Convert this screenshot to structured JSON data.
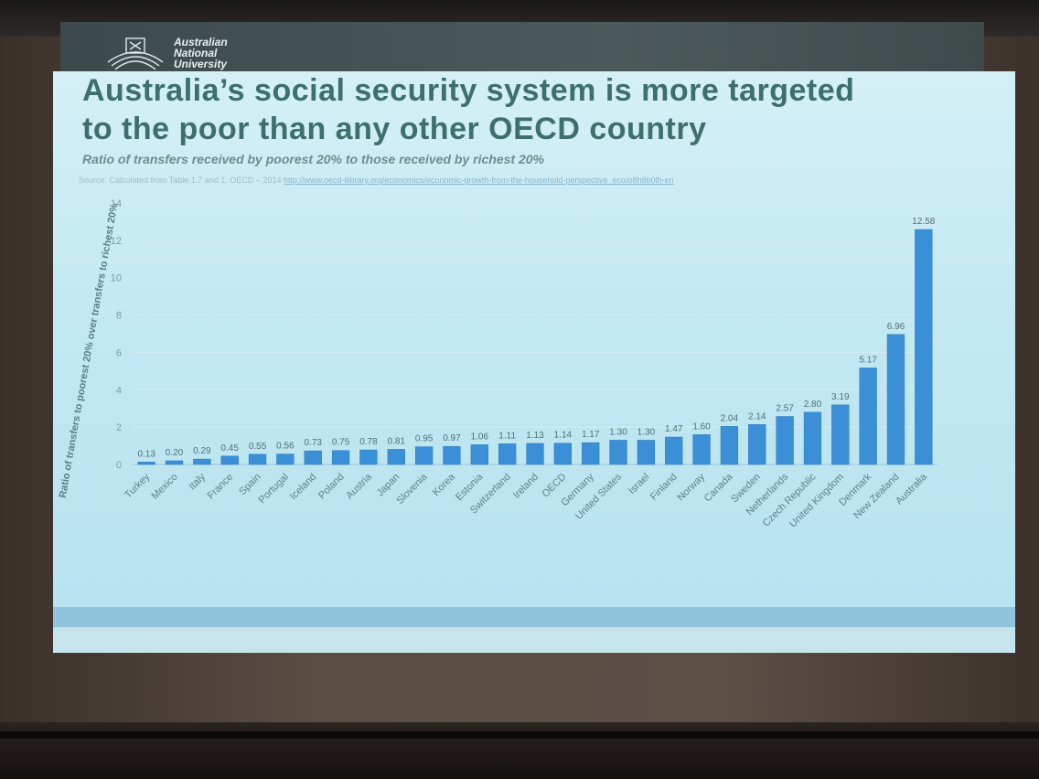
{
  "logo": {
    "line1": "Australian",
    "line2": "National",
    "line3": "University"
  },
  "slide": {
    "title_line1": "Australia’s social security system is more targeted",
    "title_line2": "to the poor than any other OECD country",
    "source_prefix": "Source: Calculated from Table 1.7 and 1: OECD – 2014",
    "source_link": "http://www.oecd-ilibrary.org/economics/economic-growth-from-the-household-perspective_eco/o8h8b0lh-en"
  },
  "colors": {
    "bar": "#3b8fd6",
    "bar_edge": "#2f7cc2",
    "title": "#3d6f6c",
    "grid": "#d3ecf2"
  },
  "chart_data": {
    "type": "bar",
    "title": "Ratio of transfers received by poorest 20% to those received by richest 20%",
    "ylabel": "Ratio of transfers to poorest 20% over transfers to richest 20%",
    "xlabel": "",
    "ylim": [
      0,
      14
    ],
    "yticks": [
      0,
      2,
      4,
      6,
      8,
      10,
      12,
      14
    ],
    "grid": true,
    "categories": [
      "Turkey",
      "Mexico",
      "Italy",
      "France",
      "Spain",
      "Portugal",
      "Iceland",
      "Poland",
      "Austria",
      "Japan",
      "Slovenia",
      "Korea",
      "Estonia",
      "Switzerland",
      "Ireland",
      "OECD",
      "Germany",
      "United States",
      "Israel",
      "Finland",
      "Norway",
      "Canada",
      "Sweden",
      "Netherlands",
      "Czech Republic",
      "United Kingdom",
      "Denmark",
      "New Zealand",
      "Australia"
    ],
    "values": [
      0.13,
      0.2,
      0.29,
      0.45,
      0.55,
      0.56,
      0.73,
      0.75,
      0.78,
      0.81,
      0.95,
      0.97,
      1.06,
      1.11,
      1.13,
      1.14,
      1.17,
      1.3,
      1.3,
      1.47,
      1.6,
      2.04,
      2.14,
      2.57,
      2.8,
      3.19,
      5.17,
      6.96,
      12.58
    ],
    "labels": [
      "0.13",
      "0.20",
      "0.29",
      "0.45",
      "0.55",
      "0.56",
      "0.73",
      "0.75",
      "0.78",
      "0.81",
      "0.95",
      "0.97",
      "1.06",
      "1.11",
      "1.13",
      "1.14",
      "1.17",
      "1.30",
      "1.30",
      "1.47",
      "1.60",
      "2.04",
      "2.14",
      "2.57",
      "2.80",
      "3.19",
      "5.17",
      "6.96",
      "12.58"
    ]
  }
}
